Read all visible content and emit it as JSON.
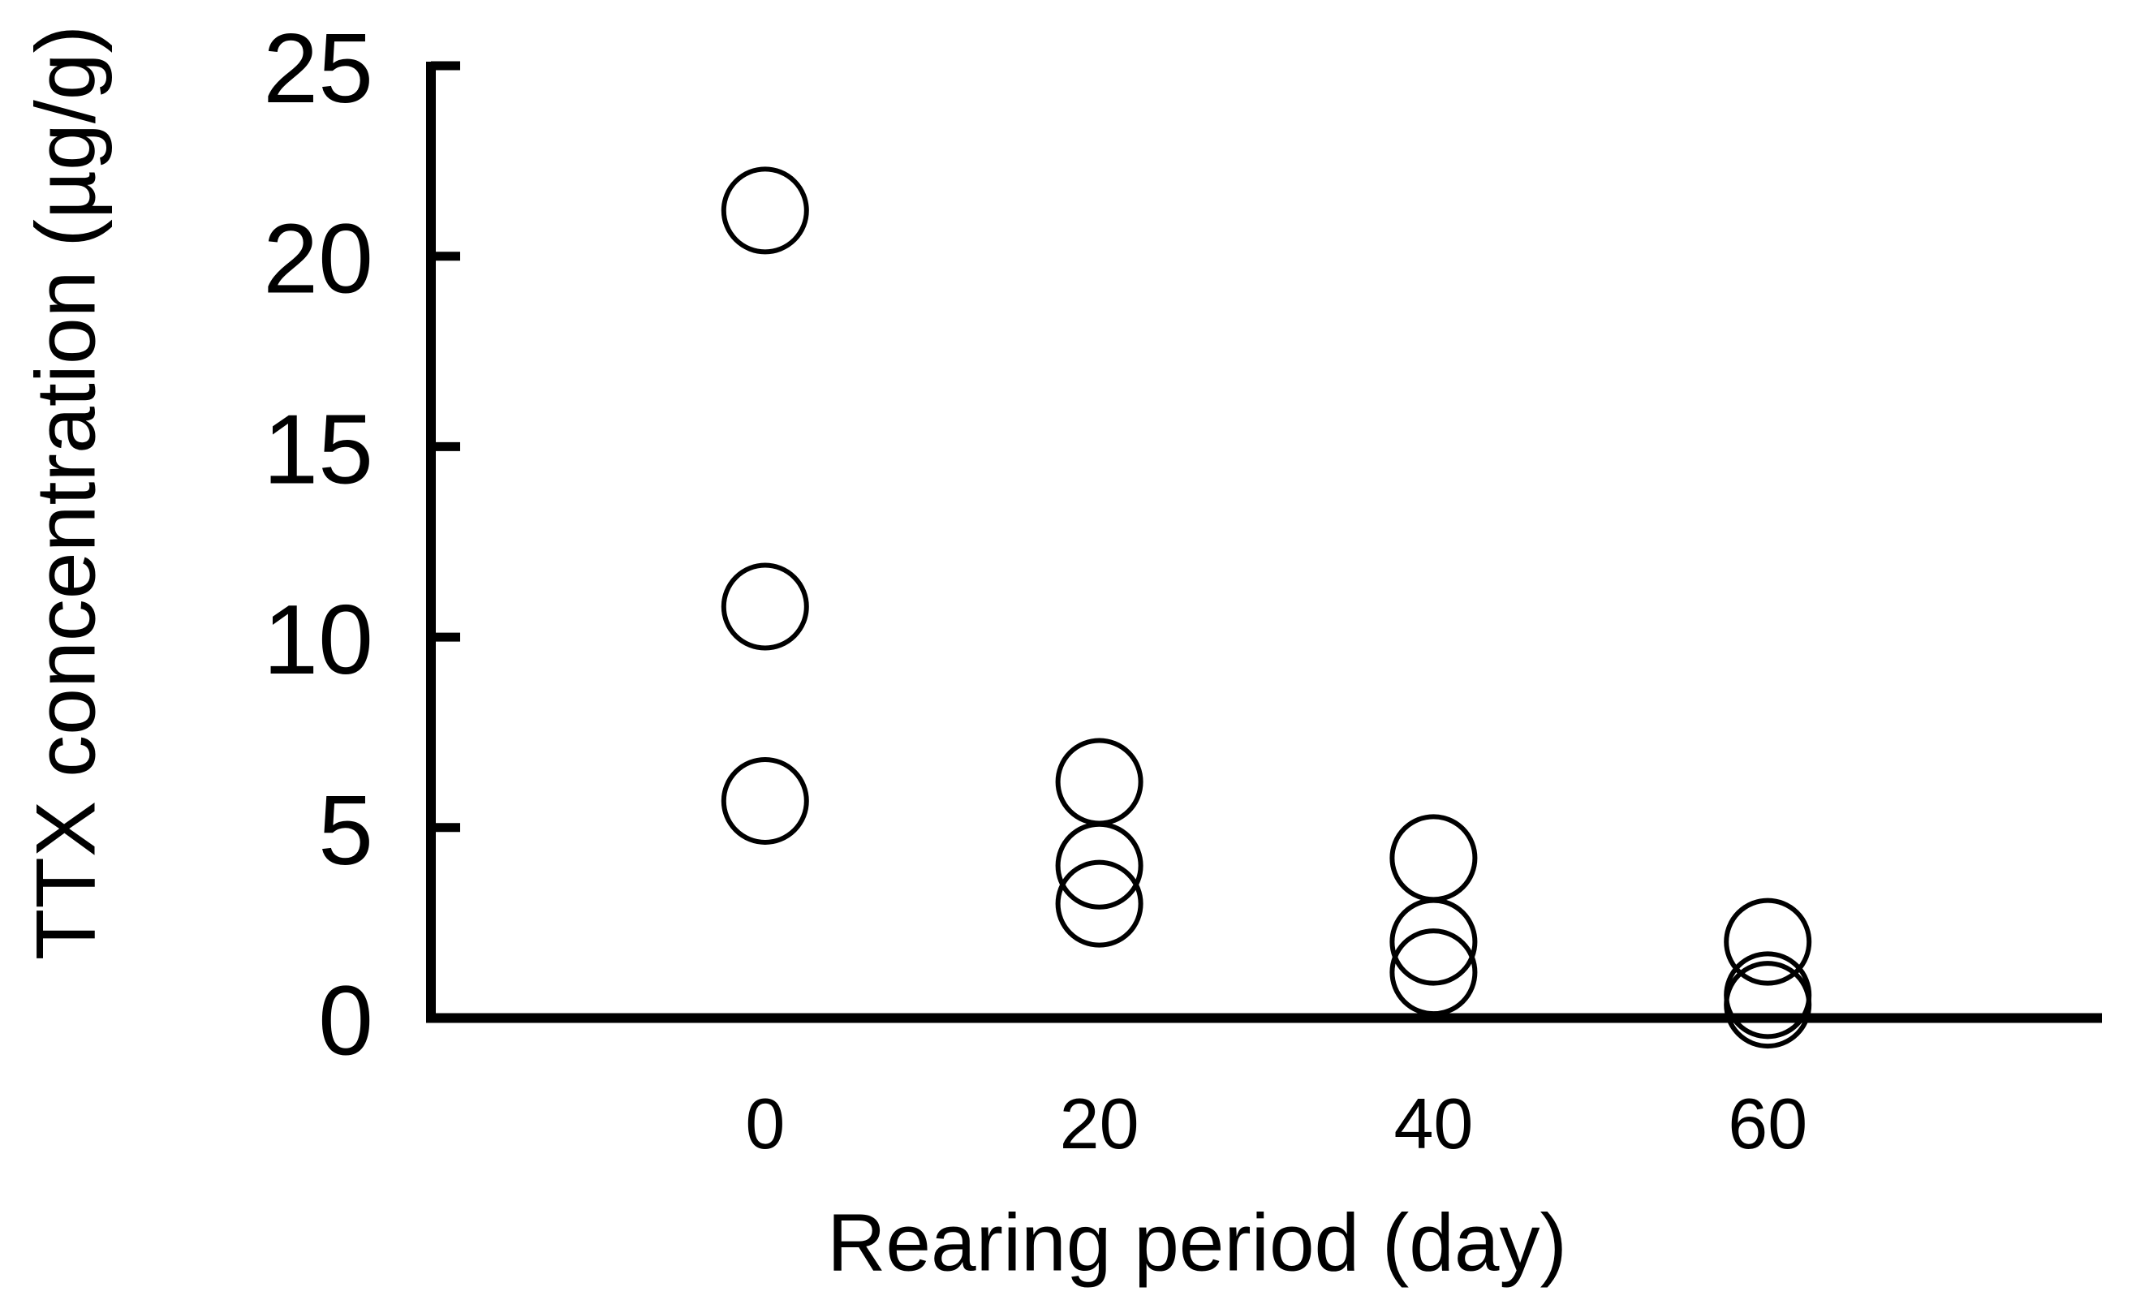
{
  "figure": {
    "background_color": "#ffffff",
    "ink_color": "#000000"
  },
  "chart_data": {
    "type": "scatter",
    "title": "",
    "xlabel": "Rearing period (day)",
    "ylabel": "TTX concentration (µg/g)",
    "x_categories": [
      0,
      20,
      40,
      60
    ],
    "x_tick_labels": [
      "0",
      "20",
      "40",
      "60"
    ],
    "y_tick_values": [
      0,
      5,
      10,
      15,
      20,
      25
    ],
    "y_tick_labels": [
      "0",
      "5",
      "10",
      "15",
      "20",
      "25"
    ],
    "ylim": [
      0,
      25
    ],
    "grid": false,
    "legend_position": "none",
    "marker": "open-circle",
    "marker_color": "#000000",
    "series": [
      {
        "name": "TTX concentration",
        "points": [
          {
            "x": 0,
            "y": 21.2
          },
          {
            "x": 0,
            "y": 10.8
          },
          {
            "x": 0,
            "y": 5.7
          },
          {
            "x": 20,
            "y": 6.2
          },
          {
            "x": 20,
            "y": 4.0
          },
          {
            "x": 20,
            "y": 3.0
          },
          {
            "x": 40,
            "y": 4.2
          },
          {
            "x": 40,
            "y": 2.0
          },
          {
            "x": 40,
            "y": 1.2
          },
          {
            "x": 60,
            "y": 2.0
          },
          {
            "x": 60,
            "y": 0.6
          },
          {
            "x": 60,
            "y": 0.35
          }
        ]
      }
    ]
  }
}
